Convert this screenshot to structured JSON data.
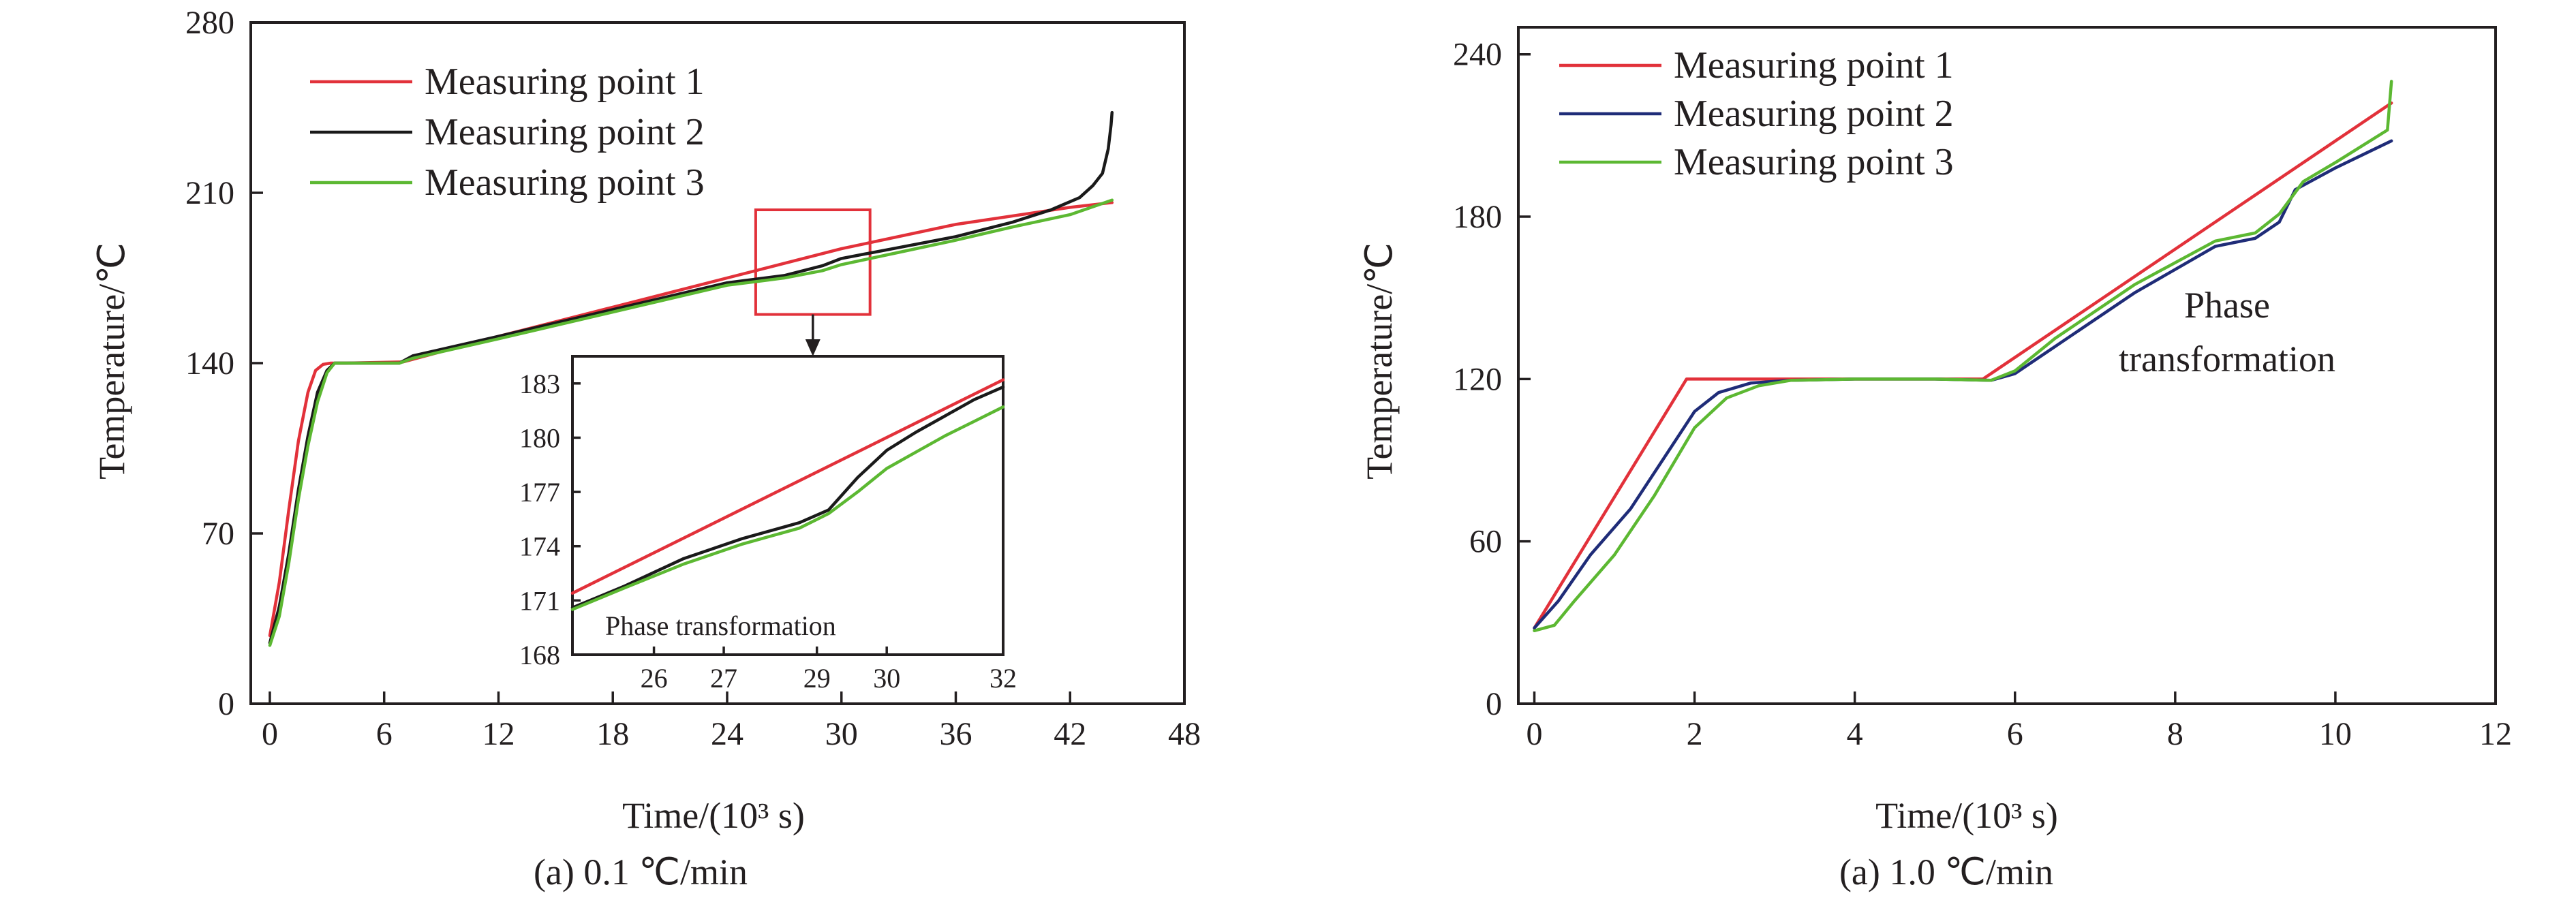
{
  "colors": {
    "axis": "#231f20",
    "red": "#e2313a",
    "black": "#1a1a1a",
    "green": "#5cb832",
    "navy": "#1f2c78"
  },
  "chart_data": [
    {
      "id": "a",
      "type": "line",
      "caption": "(a) 0.1 ℃/min",
      "xlabel": "Time/(10³ s)",
      "ylabel": "Temperature/℃",
      "xlim": [
        -1,
        48
      ],
      "ylim": [
        0,
        280
      ],
      "x_ticks": [
        "0",
        "6",
        "12",
        "18",
        "24",
        "30",
        "36",
        "42",
        "48"
      ],
      "y_ticks": [
        "0",
        "70",
        "140",
        "210",
        "280"
      ],
      "grid": false,
      "legend_position": "top-left",
      "series": [
        {
          "name": "Measuring point 1",
          "color": "#e2313a",
          "x": [
            0,
            0.5,
            1,
            1.5,
            2,
            2.4,
            2.8,
            3.2,
            4,
            7,
            12,
            18,
            24,
            30,
            36,
            42,
            44.2
          ],
          "y": [
            28,
            50,
            80,
            108,
            128,
            137,
            139.5,
            140,
            140,
            140.5,
            151,
            163,
            175,
            187,
            197,
            204,
            206
          ]
        },
        {
          "name": "Measuring point 2",
          "color": "#1a1a1a",
          "x": [
            0,
            0.5,
            1,
            1.5,
            2,
            2.5,
            3,
            3.4,
            4,
            6.8,
            7.5,
            12,
            18,
            24,
            27,
            29,
            30,
            33,
            36,
            39,
            41,
            42.5,
            43.2,
            43.7,
            44,
            44.15,
            44.2
          ],
          "y": [
            25,
            40,
            62,
            88,
            110,
            128,
            137,
            140,
            140,
            140,
            143,
            151,
            162,
            173,
            176,
            180,
            183,
            187.5,
            192,
            198,
            203,
            208,
            213,
            218,
            228,
            238,
            243
          ]
        },
        {
          "name": "Measuring point 3",
          "color": "#5cb832",
          "x": [
            0,
            0.5,
            1,
            1.5,
            2,
            2.5,
            3,
            3.4,
            4,
            6.8,
            7.5,
            12,
            18,
            24,
            26,
            27,
            29,
            30,
            33,
            36,
            39,
            42,
            44.2
          ],
          "y": [
            24,
            36,
            58,
            84,
            106,
            124,
            136,
            140,
            140,
            140,
            142,
            150,
            161,
            172,
            174,
            175,
            178,
            180.5,
            185.5,
            190.5,
            196,
            201,
            207
          ]
        }
      ],
      "highlight_box": {
        "x": [
          25.5,
          31.5
        ],
        "y": [
          160,
          203
        ]
      },
      "inset": {
        "xlim": [
          24.6,
          32
        ],
        "ylim": [
          168,
          184.5
        ],
        "x_ticks": [
          "26",
          "27",
          "29",
          "30",
          "32"
        ],
        "x_tick_values": [
          26,
          27.2,
          28.8,
          30,
          32
        ],
        "y_ticks": [
          "168",
          "171",
          "174",
          "177",
          "180",
          "183"
        ],
        "y_tick_values": [
          168,
          171,
          174,
          177,
          180,
          183
        ],
        "annotation": "Phase transformation",
        "series": [
          {
            "name": "Measuring point 1",
            "color": "#e2313a",
            "x": [
              24.6,
              32
            ],
            "y": [
              171.4,
              183.2
            ]
          },
          {
            "name": "Measuring point 2",
            "color": "#1a1a1a",
            "x": [
              24.6,
              25.5,
              26.5,
              27.5,
              28.5,
              29,
              29.5,
              30,
              30.5,
              31,
              31.5,
              32
            ],
            "y": [
              170.6,
              171.8,
              173.3,
              174.4,
              175.3,
              176,
              177.8,
              179.3,
              180.3,
              181.2,
              182.1,
              182.8
            ]
          },
          {
            "name": "Measuring point 3",
            "color": "#5cb832",
            "x": [
              24.6,
              25.5,
              26.5,
              27.5,
              28.5,
              29,
              29.5,
              30,
              30.5,
              31,
              31.5,
              32
            ],
            "y": [
              170.5,
              171.7,
              173,
              174.1,
              175,
              175.8,
              177,
              178.3,
              179.2,
              180.1,
              180.9,
              181.7
            ]
          }
        ]
      }
    },
    {
      "id": "b",
      "type": "line",
      "caption": "(a) 1.0 ℃/min",
      "xlabel": "Time/(10³ s)",
      "ylabel": "Temperature/℃",
      "xlim": [
        -0.2,
        12
      ],
      "ylim": [
        0,
        250
      ],
      "x_ticks": [
        "0",
        "2",
        "4",
        "6",
        "8",
        "10",
        "12"
      ],
      "y_ticks": [
        "0",
        "60",
        "120",
        "180",
        "240"
      ],
      "grid": false,
      "legend_position": "top-left",
      "annotation": [
        "Phase",
        "transformation"
      ],
      "series": [
        {
          "name": "Measuring point 1",
          "color": "#e2313a",
          "x": [
            0,
            1.9,
            5.6,
            10.7
          ],
          "y": [
            28,
            120,
            120,
            222
          ]
        },
        {
          "name": "Measuring point 2",
          "color": "#1f2c78",
          "x": [
            0,
            0.3,
            0.7,
            1.2,
            1.6,
            2.0,
            2.3,
            2.7,
            3.2,
            4,
            5,
            5.7,
            6.0,
            6.5,
            7.5,
            8.5,
            9.0,
            9.3,
            9.5,
            10,
            10.7
          ],
          "y": [
            28,
            38,
            55,
            72,
            90,
            108,
            115,
            118.5,
            119.5,
            120,
            120,
            119.5,
            122,
            132,
            152,
            169,
            172,
            178,
            190,
            198,
            208
          ]
        },
        {
          "name": "Measuring point 3",
          "color": "#5cb832",
          "x": [
            0,
            0.25,
            0.5,
            1.0,
            1.5,
            2.0,
            2.4,
            2.8,
            3.2,
            4,
            5,
            5.7,
            6.0,
            6.5,
            7.5,
            8.5,
            9.0,
            9.3,
            9.6,
            10,
            10.65,
            10.7
          ],
          "y": [
            27,
            29,
            38,
            55,
            77,
            102,
            113,
            117.5,
            119.5,
            120,
            120,
            119.5,
            123,
            135,
            155,
            171,
            174,
            181,
            193,
            200,
            212,
            230
          ]
        }
      ]
    }
  ]
}
